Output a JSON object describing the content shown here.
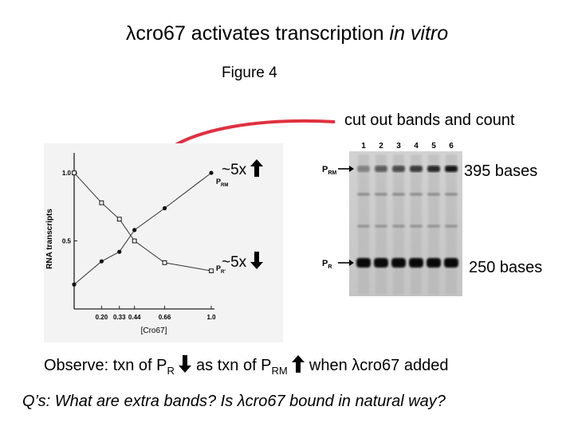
{
  "slide": {
    "title_prefix": "λcro67 activates transcription ",
    "title_emph": "in vitro",
    "figure_label": "Figure 4",
    "cut_note": "cut out bands and count",
    "fold_up": "~5x",
    "fold_down": "~5x",
    "band_upper": "395 bases",
    "band_lower": "250 bases",
    "observe": {
      "part1": "Observe: txn of P",
      "sub1": "R",
      "part2": " as txn of P",
      "sub2": "RM",
      "part3": " when λcro67 added"
    },
    "question": "Q’s: What are extra bands? Is λcro67 bound in natural way?"
  },
  "gel": {
    "lanes": [
      "1",
      "2",
      "3",
      "4",
      "5",
      "6"
    ],
    "label_upper": "P",
    "label_upper_sub": "RM",
    "label_lower": "P",
    "label_lower_sub": "R"
  },
  "colors": {
    "annotation_arrow": "#e03040",
    "text": "#000000"
  },
  "chart_data": {
    "type": "line",
    "xlabel": "[Cro67]",
    "ylabel": "RNA transcripts",
    "x_ticks": [
      "0.20",
      "0.33",
      "0.44",
      "0.66",
      "1.0"
    ],
    "y_ticks": [
      "1.0",
      "0.5"
    ],
    "ylim": [
      0,
      1.1
    ],
    "series": [
      {
        "name": "P",
        "name_sub": "RM",
        "x": [
          0,
          0.2,
          0.33,
          0.44,
          0.66,
          1.0
        ],
        "y": [
          0.18,
          0.35,
          0.42,
          0.58,
          0.74,
          1.0
        ]
      },
      {
        "name": "P",
        "name_sub": "R′",
        "x": [
          0,
          0.2,
          0.33,
          0.44,
          0.66,
          1.0
        ],
        "y": [
          1.0,
          0.78,
          0.66,
          0.5,
          0.34,
          0.28
        ]
      }
    ]
  }
}
